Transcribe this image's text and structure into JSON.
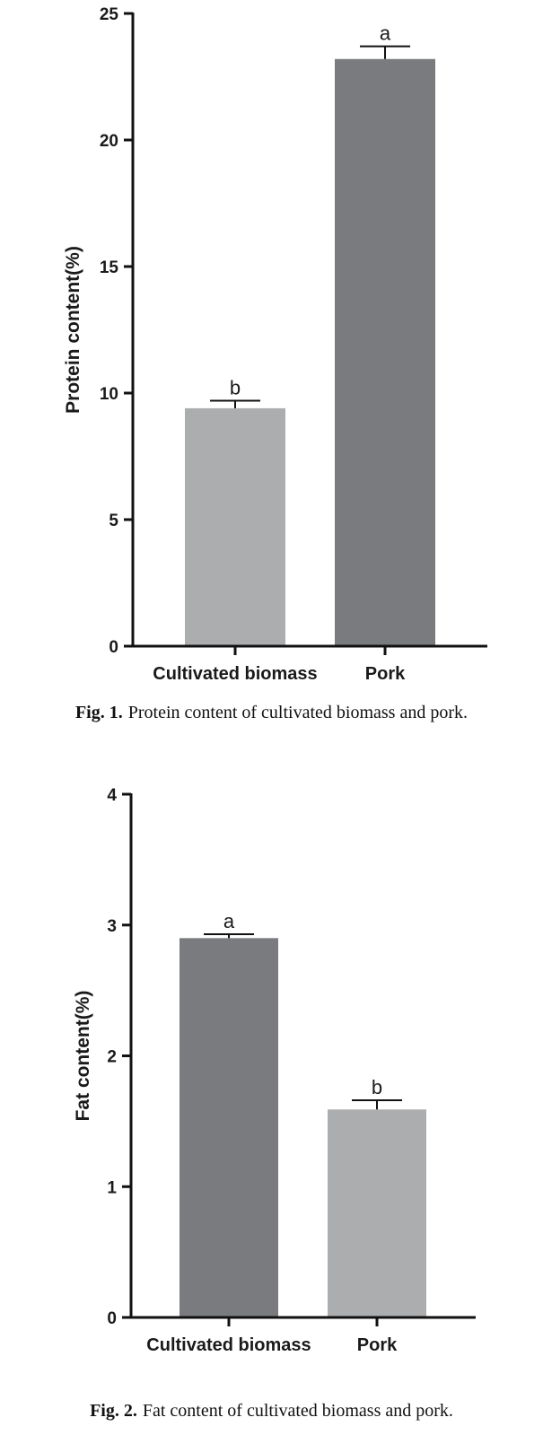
{
  "chart_data": [
    {
      "type": "bar",
      "categories": [
        "Cultivated biomass",
        "Pork"
      ],
      "values": [
        9.4,
        23.2
      ],
      "errors": [
        0.3,
        0.5
      ],
      "significance": [
        "b",
        "a"
      ],
      "bar_colors": [
        "#acadaf",
        "#7a7b7e"
      ],
      "ylabel": "Protein content(%)",
      "ylim": [
        0,
        25
      ],
      "yticks": [
        0,
        5,
        10,
        15,
        20,
        25
      ],
      "caption_label": "Fig. 1.",
      "caption_text": "Protein content of cultivated biomass and pork."
    },
    {
      "type": "bar",
      "categories": [
        "Cultivated biomass",
        "Pork"
      ],
      "values": [
        2.9,
        1.59
      ],
      "errors": [
        0.03,
        0.07
      ],
      "significance": [
        "a",
        "b"
      ],
      "bar_colors": [
        "#7a7b7e",
        "#acadaf"
      ],
      "ylabel": "Fat content(%)",
      "ylim": [
        0,
        4
      ],
      "yticks": [
        0,
        1,
        2,
        3,
        4
      ],
      "caption_label": "Fig. 2.",
      "caption_text": "Fat content of cultivated biomass and pork."
    }
  ]
}
